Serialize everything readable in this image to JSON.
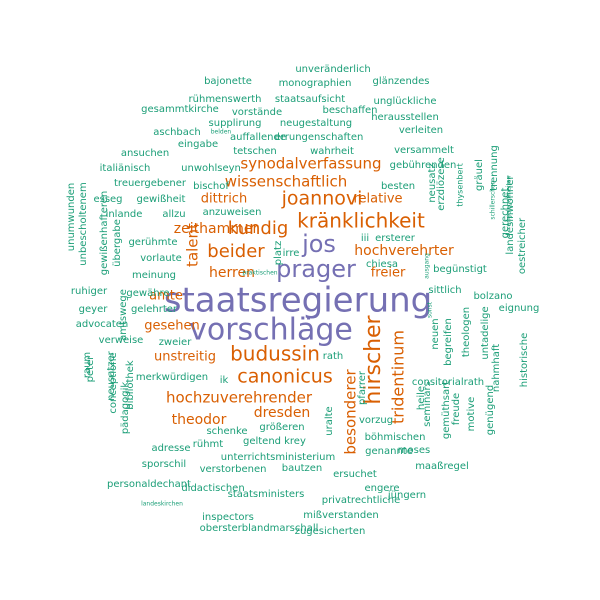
{
  "colors": {
    "large": "#7570b3",
    "medium": "#d95f02",
    "small": "#1b9e77"
  },
  "words": [
    {
      "text": "staatsregierung",
      "weight": 34,
      "color": "large"
    },
    {
      "text": "vorschläge",
      "weight": 30,
      "color": "large"
    },
    {
      "text": "prager",
      "weight": 24,
      "color": "large"
    },
    {
      "text": "jos",
      "weight": 24,
      "color": "large"
    },
    {
      "text": "hirscher",
      "weight": 22,
      "color": "medium"
    },
    {
      "text": "kränklichkeit",
      "weight": 20,
      "color": "medium"
    },
    {
      "text": "budussin",
      "weight": 20,
      "color": "medium"
    },
    {
      "text": "joannovi",
      "weight": 19,
      "color": "medium"
    },
    {
      "text": "canonicus",
      "weight": 19,
      "color": "medium"
    },
    {
      "text": "beider",
      "weight": 18,
      "color": "medium"
    },
    {
      "text": "kundig",
      "weight": 18,
      "color": "medium"
    },
    {
      "text": "tridentinum",
      "weight": 16,
      "color": "medium"
    },
    {
      "text": "talent",
      "weight": 15,
      "color": "medium"
    },
    {
      "text": "synodalverfassung",
      "weight": 15,
      "color": "medium"
    },
    {
      "text": "wissenschaftlich",
      "weight": 15,
      "color": "medium"
    },
    {
      "text": "hochzuverehrender",
      "weight": 15,
      "color": "medium"
    },
    {
      "text": "besonderer",
      "weight": 15,
      "color": "medium"
    },
    {
      "text": "zeithammer",
      "weight": 14,
      "color": "medium"
    },
    {
      "text": "hochverehrter",
      "weight": 14,
      "color": "medium"
    },
    {
      "text": "herren",
      "weight": 14,
      "color": "medium"
    },
    {
      "text": "theodor",
      "weight": 14,
      "color": "medium"
    },
    {
      "text": "dresden",
      "weight": 14,
      "color": "medium"
    },
    {
      "text": "unstreitig",
      "weight": 13,
      "color": "medium"
    },
    {
      "text": "gesehen",
      "weight": 13,
      "color": "medium"
    },
    {
      "text": "dittrich",
      "weight": 13,
      "color": "medium"
    },
    {
      "text": "relative",
      "weight": 13,
      "color": "medium"
    },
    {
      "text": "freier",
      "weight": 13,
      "color": "medium"
    },
    {
      "text": "amte",
      "weight": 13,
      "color": "medium"
    },
    {
      "text": "unveränderlich",
      "weight": 10,
      "color": "small"
    },
    {
      "text": "monographien",
      "weight": 10,
      "color": "small"
    },
    {
      "text": "bajonette",
      "weight": 10,
      "color": "small"
    },
    {
      "text": "glänzendes",
      "weight": 10,
      "color": "small"
    },
    {
      "text": "rühmenswerth",
      "weight": 10,
      "color": "small"
    },
    {
      "text": "staatsaufsicht",
      "weight": 10,
      "color": "small"
    },
    {
      "text": "unglückliche",
      "weight": 10,
      "color": "small"
    },
    {
      "text": "gesammtkirche",
      "weight": 10,
      "color": "small"
    },
    {
      "text": "vorstände",
      "weight": 10,
      "color": "small"
    },
    {
      "text": "beschaffen",
      "weight": 10,
      "color": "small"
    },
    {
      "text": "supplirung",
      "weight": 10,
      "color": "small"
    },
    {
      "text": "neugestaltung",
      "weight": 10,
      "color": "small"
    },
    {
      "text": "herausstellen",
      "weight": 10,
      "color": "small"
    },
    {
      "text": "aschbach",
      "weight": 10,
      "color": "small"
    },
    {
      "text": "belden",
      "weight": 6,
      "color": "small"
    },
    {
      "text": "auffallende",
      "weight": 10,
      "color": "small"
    },
    {
      "text": "errungenschaften",
      "weight": 10,
      "color": "small"
    },
    {
      "text": "verleiten",
      "weight": 10,
      "color": "small"
    },
    {
      "text": "eingabe",
      "weight": 10,
      "color": "small"
    },
    {
      "text": "ansuchen",
      "weight": 10,
      "color": "small"
    },
    {
      "text": "tetschen",
      "weight": 10,
      "color": "small"
    },
    {
      "text": "wahrheit",
      "weight": 10,
      "color": "small"
    },
    {
      "text": "versammelt",
      "weight": 10,
      "color": "small"
    },
    {
      "text": "unwohlseyn",
      "weight": 10,
      "color": "small"
    },
    {
      "text": "gebührenden",
      "weight": 10,
      "color": "small"
    },
    {
      "text": "italiänisch",
      "weight": 10,
      "color": "small"
    },
    {
      "text": "treuergebener",
      "weight": 10,
      "color": "small"
    },
    {
      "text": "bischof",
      "weight": 10,
      "color": "small"
    },
    {
      "text": "besten",
      "weight": 10,
      "color": "small"
    },
    {
      "text": "esseg",
      "weight": 10,
      "color": "small"
    },
    {
      "text": "gewißheit",
      "weight": 10,
      "color": "small"
    },
    {
      "text": "inlande",
      "weight": 10,
      "color": "small"
    },
    {
      "text": "allzu",
      "weight": 10,
      "color": "small"
    },
    {
      "text": "anzuweisen",
      "weight": 10,
      "color": "small"
    },
    {
      "text": "chiesa",
      "weight": 10,
      "color": "small"
    },
    {
      "text": "ersterer",
      "weight": 10,
      "color": "small"
    },
    {
      "text": "gerühmte",
      "weight": 10,
      "color": "small"
    },
    {
      "text": "iii",
      "weight": 10,
      "color": "small"
    },
    {
      "text": "irre",
      "weight": 10,
      "color": "small"
    },
    {
      "text": "platz",
      "weight": 10,
      "color": "small"
    },
    {
      "text": "vorlaute",
      "weight": 10,
      "color": "small"
    },
    {
      "text": "meinung",
      "weight": 10,
      "color": "small"
    },
    {
      "text": "begünstigt",
      "weight": 10,
      "color": "small"
    },
    {
      "text": "ruhiger",
      "weight": 10,
      "color": "small"
    },
    {
      "text": "gewähre",
      "weight": 10,
      "color": "small"
    },
    {
      "text": "sittlich",
      "weight": 10,
      "color": "small"
    },
    {
      "text": "bolzano",
      "weight": 10,
      "color": "small"
    },
    {
      "text": "geyer",
      "weight": 10,
      "color": "small"
    },
    {
      "text": "gelehrter",
      "weight": 10,
      "color": "small"
    },
    {
      "text": "eignung",
      "weight": 10,
      "color": "small"
    },
    {
      "text": "advocaten",
      "weight": 10,
      "color": "small"
    },
    {
      "text": "zweier",
      "weight": 10,
      "color": "small"
    },
    {
      "text": "verweise",
      "weight": 10,
      "color": "small"
    },
    {
      "text": "rath",
      "weight": 10,
      "color": "small"
    },
    {
      "text": "vorzug",
      "weight": 10,
      "color": "small"
    },
    {
      "text": "merkwürdigen",
      "weight": 10,
      "color": "small"
    },
    {
      "text": "consitorialrath",
      "weight": 10,
      "color": "small"
    },
    {
      "text": "ik",
      "weight": 10,
      "color": "small"
    },
    {
      "text": "größeren",
      "weight": 10,
      "color": "small"
    },
    {
      "text": "schenke",
      "weight": 10,
      "color": "small"
    },
    {
      "text": "böhmischen",
      "weight": 10,
      "color": "small"
    },
    {
      "text": "geltend",
      "weight": 10,
      "color": "small"
    },
    {
      "text": "krey",
      "weight": 10,
      "color": "small"
    },
    {
      "text": "adresse",
      "weight": 10,
      "color": "small"
    },
    {
      "text": "rühmt",
      "weight": 10,
      "color": "small"
    },
    {
      "text": "moses",
      "weight": 10,
      "color": "small"
    },
    {
      "text": "unterrichtsministerium",
      "weight": 10,
      "color": "small"
    },
    {
      "text": "genannte",
      "weight": 10,
      "color": "small"
    },
    {
      "text": "sporschil",
      "weight": 10,
      "color": "small"
    },
    {
      "text": "bautzen",
      "weight": 10,
      "color": "small"
    },
    {
      "text": "maaßregel",
      "weight": 10,
      "color": "small"
    },
    {
      "text": "verstorbenen",
      "weight": 10,
      "color": "small"
    },
    {
      "text": "ersuchet",
      "weight": 10,
      "color": "small"
    },
    {
      "text": "personaldechant",
      "weight": 10,
      "color": "small"
    },
    {
      "text": "didactischen",
      "weight": 10,
      "color": "small"
    },
    {
      "text": "engere",
      "weight": 10,
      "color": "small"
    },
    {
      "text": "staatsministers",
      "weight": 10,
      "color": "small"
    },
    {
      "text": "privatrechtliche",
      "weight": 10,
      "color": "small"
    },
    {
      "text": "jüngern",
      "weight": 10,
      "color": "small"
    },
    {
      "text": "landeskirchen",
      "weight": 6,
      "color": "small"
    },
    {
      "text": "mißverstanden",
      "weight": 10,
      "color": "small"
    },
    {
      "text": "inspectors",
      "weight": 10,
      "color": "small"
    },
    {
      "text": "obersterblandmarschall",
      "weight": 10,
      "color": "small"
    },
    {
      "text": "zugesicherten",
      "weight": 10,
      "color": "small"
    },
    {
      "text": "unumwunden",
      "weight": 10,
      "color": "small"
    },
    {
      "text": "unbescholtenem",
      "weight": 10,
      "color": "small"
    },
    {
      "text": "gewißenhafteren",
      "weight": 10,
      "color": "small"
    },
    {
      "text": "übergabe",
      "weight": 10,
      "color": "small"
    },
    {
      "text": "amtswege",
      "weight": 10,
      "color": "small"
    },
    {
      "text": "raum",
      "weight": 10,
      "color": "small"
    },
    {
      "text": "peter",
      "weight": 10,
      "color": "small"
    },
    {
      "text": "neusatzer",
      "weight": 10,
      "color": "small"
    },
    {
      "text": "conceptione",
      "weight": 10,
      "color": "small"
    },
    {
      "text": "pädagogik",
      "weight": 10,
      "color": "small"
    },
    {
      "text": "bibliothek",
      "weight": 10,
      "color": "small"
    },
    {
      "text": "uralte",
      "weight": 10,
      "color": "small"
    },
    {
      "text": "pfarrer",
      "weight": 10,
      "color": "small"
    },
    {
      "text": "seminars",
      "weight": 10,
      "color": "small"
    },
    {
      "text": "heile",
      "weight": 10,
      "color": "small"
    },
    {
      "text": "neuen",
      "weight": 10,
      "color": "small"
    },
    {
      "text": "begreifen",
      "weight": 10,
      "color": "small"
    },
    {
      "text": "theologen",
      "weight": 10,
      "color": "small"
    },
    {
      "text": "untadelige",
      "weight": 10,
      "color": "small"
    },
    {
      "text": "nahmhaft",
      "weight": 10,
      "color": "small"
    },
    {
      "text": "historische",
      "weight": 10,
      "color": "small"
    },
    {
      "text": "gemüthsart",
      "weight": 10,
      "color": "small"
    },
    {
      "text": "freude",
      "weight": 10,
      "color": "small"
    },
    {
      "text": "motive",
      "weight": 10,
      "color": "small"
    },
    {
      "text": "genügend",
      "weight": 10,
      "color": "small"
    },
    {
      "text": "gräuel",
      "weight": 10,
      "color": "small"
    },
    {
      "text": "trennung",
      "weight": 10,
      "color": "small"
    },
    {
      "text": "gerechnet",
      "weight": 10,
      "color": "small"
    },
    {
      "text": "landesinwohner",
      "weight": 10,
      "color": "small"
    },
    {
      "text": "oestreicher",
      "weight": 10,
      "color": "small"
    },
    {
      "text": "neusatz",
      "weight": 10,
      "color": "small"
    },
    {
      "text": "thysenbert",
      "weight": 8,
      "color": "small"
    },
    {
      "text": "erzdiözese",
      "weight": 10,
      "color": "small"
    },
    {
      "text": "schillerschen",
      "weight": 6,
      "color": "small"
    },
    {
      "text": "angelegenheiten",
      "weight": 6,
      "color": "small"
    },
    {
      "text": "ausgang",
      "weight": 6,
      "color": "small"
    },
    {
      "text": "sonst",
      "weight": 6,
      "color": "small"
    },
    {
      "text": "praktischen",
      "weight": 6,
      "color": "small"
    },
    {
      "text": "y",
      "weight": 10,
      "color": "small"
    }
  ]
}
